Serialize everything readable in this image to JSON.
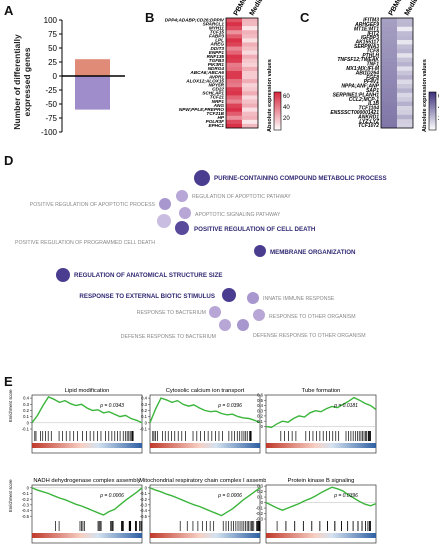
{
  "panels": {
    "A": {
      "label": "A",
      "ylabel": "Number of differentially expressed genes",
      "yticks": [
        100,
        75,
        50,
        25,
        0,
        -25,
        -50,
        -75,
        -100
      ],
      "chart_data": {
        "type": "bar",
        "ylim": [
          -100,
          100
        ],
        "series": [
          {
            "values": [
              30
            ],
            "color": "#e08a78"
          },
          {
            "values": [
              -60
            ],
            "color": "#9e8ccb"
          }
        ]
      }
    },
    "B": {
      "label": "B",
      "columns": [
        "PBMCsec",
        "Medium"
      ],
      "genes": [
        "DPP4;ADABP;CD26;DPPIV",
        "SPARCL1",
        "MYH11",
        "TCF15",
        "FABP3",
        "LPL",
        "AREG",
        "DDIT3",
        "ENPP1",
        "RNF135",
        "TGFB3",
        "PIK3R1",
        "NDRG4",
        "ABCA6;ABCA6",
        "AVPR1",
        "ALOX12;ALOX15",
        "NPY5R",
        "CD22",
        "SCHLAP1",
        "TCF21",
        "NRP1",
        "ANG",
        "NPW;PPL8;PREPRO",
        "TCF21B",
        "HP",
        "POLR3F",
        "EPHC1"
      ],
      "colorbar": {
        "title": "Absolute expression values",
        "ticks": [
          "600",
          "400",
          "200"
        ]
      },
      "color_low": "#ffffff",
      "color_high": "#d7263d"
    },
    "C": {
      "label": "C",
      "columns": [
        "PBMCsec",
        "Medium"
      ],
      "genes": [
        "IFITM3",
        "ARHGEF9",
        "MT1E;MT1",
        "IFIT2",
        "IGFBP3",
        "AK155117",
        "SERPINA3",
        "TCF8",
        "PTHLH",
        "TNFSF12;TWEAK",
        "TNF1",
        "MX1;MX;IFI-M",
        "ABI1D264",
        "FGF8",
        "PF4V1",
        "NPPA;ANF;ANP",
        "SAP1",
        "SERPINE1;PLANH1",
        "CCL2;MCP-1",
        "IL1B",
        "TCF1104",
        "ENSSSCT000001421",
        "ANKRD1",
        "LYZ;LYZ",
        "TCF1072"
      ],
      "colorbar": {
        "title": "Absolute expression values",
        "ticks": [
          "600",
          "400",
          "200"
        ]
      },
      "color_low": "#ffffff",
      "color_high": "#3d2f7a"
    },
    "D": {
      "label": "D",
      "nodes": [
        {
          "text": "PURINE-CONTAINING COMPOUND METABOLIC PROCESS",
          "bold": true,
          "size": 8
        },
        {
          "text": "REGULATION OF APOPTOTIC PATHWAY",
          "bold": false,
          "size": 6
        },
        {
          "text": "POSITIVE REGULATION OF APOPTOTIC PROCESS",
          "bold": false,
          "size": 6
        },
        {
          "text": "APOPTOTIC SIGNALING PATHWAY",
          "bold": false,
          "size": 6
        },
        {
          "text": "POSITIVE REGULATION OF CELL DEATH",
          "bold": true,
          "size": 7
        },
        {
          "text": "POSITIVE REGULATION OF PROGRAMMED CELL DEATH",
          "bold": false,
          "size": 7
        },
        {
          "text": "MEMBRANE ORGANIZATION",
          "bold": true,
          "size": 6
        },
        {
          "text": "REGULATION OF ANATOMICAL STRUCTURE SIZE",
          "bold": true,
          "size": 7
        },
        {
          "text": "RESPONSE TO EXTERNAL BIOTIC STIMULUS",
          "bold": true,
          "size": 7
        },
        {
          "text": "INNATE IMMUNE RESPONSE",
          "bold": false,
          "size": 6
        },
        {
          "text": "RESPONSE TO BACTERIUM",
          "bold": false,
          "size": 6
        },
        {
          "text": "RESPONSE TO OTHER ORGANISM",
          "bold": false,
          "size": 6
        },
        {
          "text": "DEFENSE RESPONSE TO BACTERIUM",
          "bold": false,
          "size": 6
        },
        {
          "text": "DEFENSE RESPONSE TO OTHER ORGANISM",
          "bold": false,
          "size": 6
        }
      ]
    },
    "E": {
      "label": "E",
      "ylabel": "Enrichment score",
      "plots": [
        {
          "title": "Lipid modification",
          "p": "p = 0.0343",
          "yticks": [
            "0.4",
            "0.3",
            "0.2",
            "0.1",
            "0",
            "-0.1"
          ],
          "curve": [
            0.0,
            0.12,
            0.28,
            0.42,
            0.38,
            0.33,
            0.36,
            0.31,
            0.28,
            0.3,
            0.24,
            0.2,
            0.21,
            0.16,
            0.18,
            0.14,
            0.1,
            0.12,
            0.07,
            0.04,
            0.0
          ],
          "ylim": [
            -0.1,
            0.45
          ]
        },
        {
          "title": "Cytosolic calcium ion transport",
          "p": "p = 0.0396",
          "yticks": [
            "0.4",
            "0.3",
            "0.2",
            "0.1",
            "0",
            "-0.1"
          ],
          "curve": [
            0.0,
            0.22,
            0.4,
            0.37,
            0.33,
            0.36,
            0.3,
            0.27,
            0.29,
            0.24,
            0.2,
            0.18,
            0.19,
            0.15,
            0.13,
            0.14,
            0.1,
            0.08,
            0.07,
            0.04,
            0.0
          ],
          "ylim": [
            -0.1,
            0.45
          ]
        },
        {
          "title": "Tube formation",
          "p": "p = 0.0181",
          "yticks": [
            "0.6",
            "0.5",
            "0.4",
            "0.3",
            "0.2",
            "0.1",
            "0"
          ],
          "curve": [
            0.0,
            -0.02,
            0.05,
            0.1,
            0.08,
            0.15,
            0.2,
            0.18,
            0.26,
            0.3,
            0.28,
            0.34,
            0.38,
            0.36,
            0.42,
            0.48,
            0.55,
            0.5,
            0.44,
            0.4,
            0.32
          ],
          "ylim": [
            -0.05,
            0.6
          ]
        },
        {
          "title": "NADH dehydrogenase complex assembly",
          "p": "p = 0.0006",
          "yticks": [
            "0",
            "-0.1",
            "-0.2",
            "-0.3",
            "-0.4",
            "-0.5"
          ],
          "curve": [
            0.0,
            -0.04,
            -0.07,
            -0.1,
            -0.14,
            -0.18,
            -0.21,
            -0.25,
            -0.29,
            -0.32,
            -0.36,
            -0.4,
            -0.44,
            -0.48,
            -0.42,
            -0.38,
            -0.3,
            -0.22,
            -0.15,
            -0.08,
            0.0
          ],
          "ylim": [
            -0.55,
            0.05
          ]
        },
        {
          "title": "Mitochondrial respiratory chain complex I assembly",
          "p": "p = 0.0006",
          "yticks": [
            "0",
            "-0.1",
            "-0.2",
            "-0.3",
            "-0.4",
            "-0.5"
          ],
          "curve": [
            0.0,
            -0.04,
            -0.07,
            -0.11,
            -0.14,
            -0.18,
            -0.22,
            -0.26,
            -0.3,
            -0.33,
            -0.37,
            -0.41,
            -0.45,
            -0.49,
            -0.43,
            -0.37,
            -0.29,
            -0.21,
            -0.14,
            -0.07,
            0.0
          ],
          "ylim": [
            -0.55,
            0.05
          ]
        },
        {
          "title": "Protein kinase B signaling",
          "p": "p = 0.0396",
          "yticks": [
            "0.3",
            "0.2",
            "0.1",
            "0",
            "-0.1",
            "-0.2",
            "-0.3"
          ],
          "curve": [
            0.0,
            -0.05,
            -0.1,
            -0.14,
            -0.1,
            -0.06,
            -0.02,
            0.03,
            0.07,
            0.12,
            0.18,
            0.23,
            0.28,
            0.25,
            0.21,
            0.14,
            0.08,
            0.02,
            -0.03,
            -0.06,
            -0.02
          ],
          "ylim": [
            -0.3,
            0.32
          ]
        }
      ]
    }
  }
}
